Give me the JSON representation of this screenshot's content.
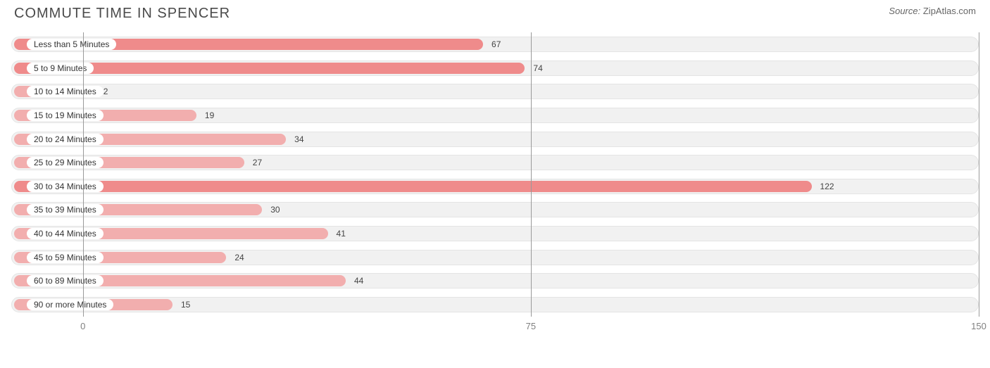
{
  "header": {
    "title": "COMMUTE TIME IN SPENCER",
    "source_label": "Source:",
    "source_name": "ZipAtlas.com"
  },
  "chart": {
    "type": "bar-horizontal",
    "background_color": "#ffffff",
    "track_bg": "#f1f1f1",
    "track_border": "#e4e4e4",
    "grid_color": "#9a9a9a",
    "label_bg": "#ffffff",
    "value_color": "#444444",
    "axis_label_color": "#808080",
    "primary_bar_color": "#ef8b8b",
    "secondary_bar_color": "#f2aeae",
    "xmin": -12,
    "xmax": 150,
    "ticks": [
      0,
      75,
      150
    ],
    "categories": [
      {
        "label": "Less than 5 Minutes",
        "value": 67,
        "primary": true
      },
      {
        "label": "5 to 9 Minutes",
        "value": 74,
        "primary": true
      },
      {
        "label": "10 to 14 Minutes",
        "value": 2,
        "primary": false
      },
      {
        "label": "15 to 19 Minutes",
        "value": 19,
        "primary": false
      },
      {
        "label": "20 to 24 Minutes",
        "value": 34,
        "primary": false
      },
      {
        "label": "25 to 29 Minutes",
        "value": 27,
        "primary": false
      },
      {
        "label": "30 to 34 Minutes",
        "value": 122,
        "primary": true
      },
      {
        "label": "35 to 39 Minutes",
        "value": 30,
        "primary": false
      },
      {
        "label": "40 to 44 Minutes",
        "value": 41,
        "primary": false
      },
      {
        "label": "45 to 59 Minutes",
        "value": 24,
        "primary": false
      },
      {
        "label": "60 to 89 Minutes",
        "value": 44,
        "primary": false
      },
      {
        "label": "90 or more Minutes",
        "value": 15,
        "primary": false
      }
    ]
  }
}
